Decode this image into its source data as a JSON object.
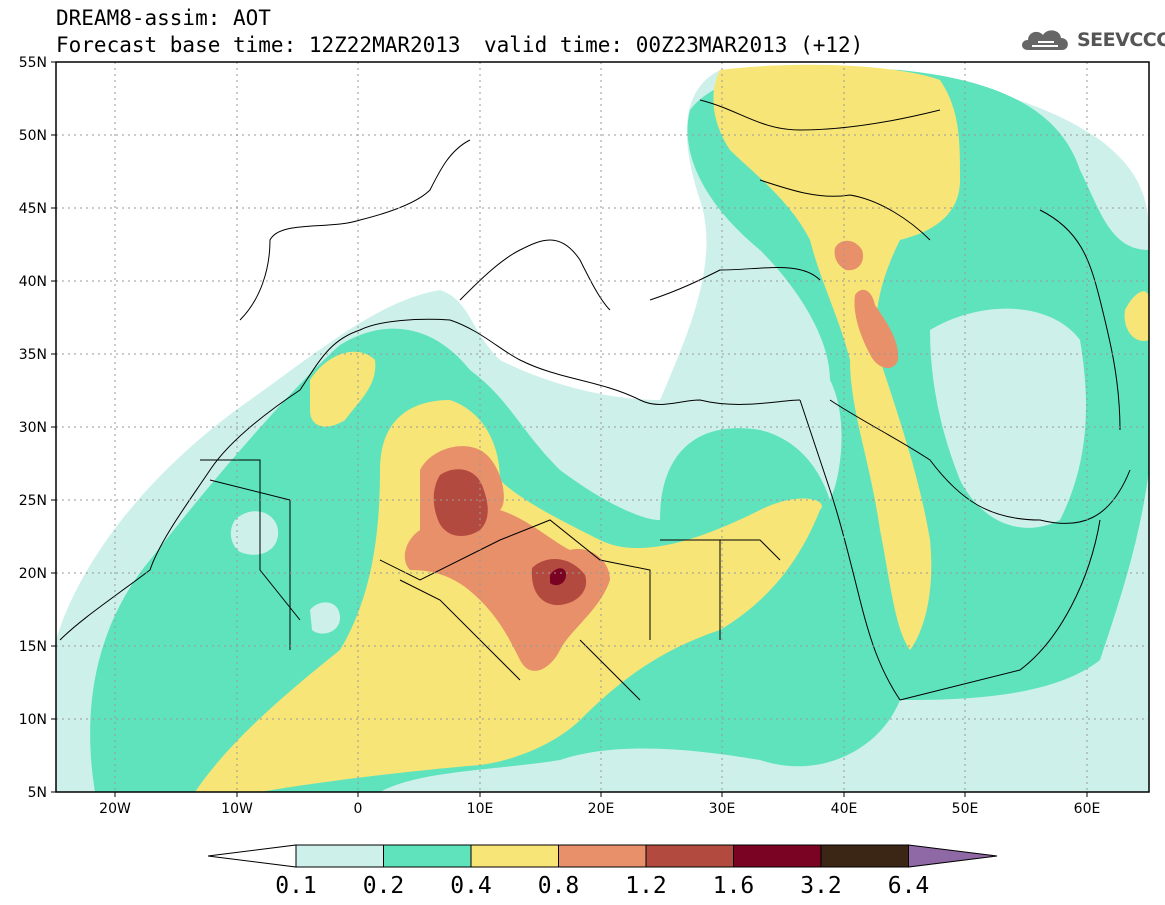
{
  "header": {
    "line1": "DREAM8-assim: AOT",
    "line2": "Forecast base time: 12Z22MAR2013",
    "valid": "valid time: 00Z23MAR2013 (+12)"
  },
  "logo": {
    "text": "SEEVCCC",
    "icon": "cloud-logo-icon"
  },
  "map": {
    "lat_labels": [
      "55N",
      "50N",
      "45N",
      "40N",
      "35N",
      "30N",
      "25N",
      "20N",
      "15N",
      "10N",
      "5N"
    ],
    "lon_labels": [
      "20W",
      "10W",
      "0",
      "10E",
      "20E",
      "30E",
      "40E",
      "50E",
      "60E"
    ],
    "extent": {
      "lon": [
        -25,
        65
      ],
      "lat": [
        5,
        55
      ]
    }
  },
  "colorbar": {
    "levels": [
      "0.1",
      "0.2",
      "0.4",
      "0.8",
      "1.2",
      "1.6",
      "3.2",
      "6.4"
    ],
    "colors": [
      "#ffffff",
      "#cdf1ea",
      "#5ee3bd",
      "#f7e578",
      "#e8906a",
      "#b34a3f",
      "#7a0324",
      "#3b2616",
      "#8f69a6"
    ]
  }
}
